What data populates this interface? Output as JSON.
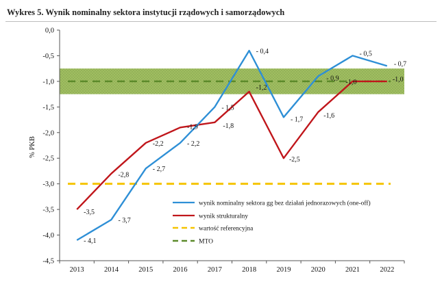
{
  "title": "Wykres 5. Wynik nominalny sektora instytucji rządowych i samorządowych",
  "chart_data": {
    "type": "line",
    "ylabel": "% PKB",
    "ylim": [
      -4.5,
      0.0
    ],
    "y_ticks": [
      0.0,
      -0.5,
      -1.0,
      -1.5,
      -2.0,
      -2.5,
      -3.0,
      -3.5,
      -4.0,
      -4.5
    ],
    "y_tick_labels": [
      "0,0",
      "-0,5",
      "-1,0",
      "-1,5",
      "-2,0",
      "-2,5",
      "-3,0",
      "-3,5",
      "-4,0",
      "-4,5"
    ],
    "categories": [
      "2013",
      "2014",
      "2015",
      "2016",
      "2017",
      "2018",
      "2019",
      "2020",
      "2021",
      "2022"
    ],
    "band": {
      "from": -0.75,
      "to": -1.25,
      "color": "#9bbb59"
    },
    "legend_position": "bottom-center",
    "series": [
      {
        "name": "wynik nominalny sektora gg  bez działań jednorazowych (one-off)",
        "color": "#2e8fd6",
        "style": "solid",
        "values": [
          -4.1,
          -3.7,
          -2.7,
          -2.2,
          -1.5,
          -0.4,
          -1.7,
          -0.9,
          -0.5,
          -0.7
        ],
        "labels": [
          "- 4,1",
          "- 3,7",
          "- 2,7",
          "- 2,2",
          "- 1,5",
          "- 0,4",
          "- 1,7",
          "- 0,9",
          "- 0,5",
          "- 0,7"
        ]
      },
      {
        "name": "wynik strukturalny",
        "color": "#c0161b",
        "style": "solid",
        "values": [
          -3.5,
          -2.8,
          -2.2,
          -1.9,
          -1.8,
          -1.2,
          -2.5,
          -1.6,
          -1.0,
          -1.0
        ],
        "labels": [
          "-3,5",
          "-2,8",
          "-2,2",
          "-1,9",
          "-1,8",
          "-1,2",
          "-2,5",
          "-1,6",
          "-1,0",
          "-1,0"
        ]
      },
      {
        "name": "wartość referencyjna",
        "color": "#f5c400",
        "style": "dashed",
        "values": [
          -3.0,
          -3.0,
          -3.0,
          -3.0,
          -3.0,
          -3.0,
          -3.0,
          -3.0,
          -3.0,
          -3.0
        ]
      },
      {
        "name": "MTO",
        "color": "#5c8a2a",
        "style": "dashed",
        "values": [
          -1.0,
          -1.0,
          -1.0,
          -1.0,
          -1.0,
          -1.0,
          -1.0,
          -1.0,
          -1.0,
          -1.0
        ]
      }
    ]
  }
}
